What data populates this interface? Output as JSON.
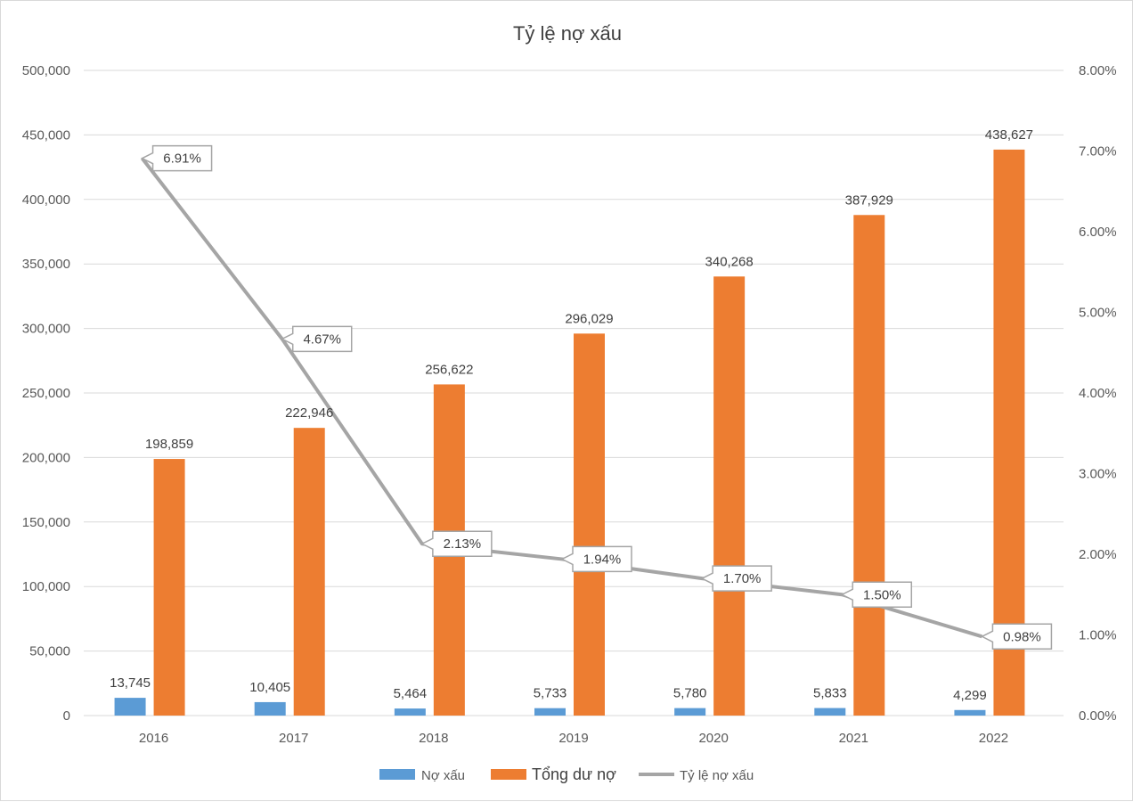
{
  "chart_data": {
    "type": "bar",
    "title": "Tỷ lệ nợ xấu",
    "categories": [
      "2016",
      "2017",
      "2018",
      "2019",
      "2020",
      "2021",
      "2022"
    ],
    "series": [
      {
        "name": "Nợ xấu",
        "type": "bar",
        "axis": "left",
        "color": "#5b9bd5",
        "values": [
          13745,
          10405,
          5464,
          5733,
          5780,
          5833,
          4299
        ],
        "labels": [
          "13,745",
          "10,405",
          "5,464",
          "5,733",
          "5,780",
          "5,833",
          "4,299"
        ]
      },
      {
        "name": "Tổng dư nợ",
        "type": "bar",
        "axis": "left",
        "color": "#ed7d31",
        "values": [
          198859,
          222946,
          256622,
          296029,
          340268,
          387929,
          438627
        ],
        "labels": [
          "198,859",
          "222,946",
          "256,622",
          "296,029",
          "340,268",
          "387,929",
          "438,627"
        ]
      },
      {
        "name": "Tỷ lệ nợ xấu",
        "type": "line",
        "axis": "right",
        "color": "#a5a5a5",
        "values": [
          6.91,
          4.67,
          2.13,
          1.94,
          1.7,
          1.5,
          0.98
        ],
        "labels": [
          "6.91%",
          "4.67%",
          "2.13%",
          "1.94%",
          "1.70%",
          "1.50%",
          "0.98%"
        ]
      }
    ],
    "ylim_left": [
      0,
      500000
    ],
    "yticks_left": [
      "0",
      "50,000",
      "100,000",
      "150,000",
      "200,000",
      "250,000",
      "300,000",
      "350,000",
      "400,000",
      "450,000",
      "500,000"
    ],
    "ylim_right": [
      0,
      8
    ],
    "yticks_right": [
      "0.00%",
      "1.00%",
      "2.00%",
      "3.00%",
      "4.00%",
      "5.00%",
      "6.00%",
      "7.00%",
      "8.00%"
    ],
    "grid": true,
    "legend_position": "bottom",
    "gridline_color": "#d9d9d9"
  }
}
